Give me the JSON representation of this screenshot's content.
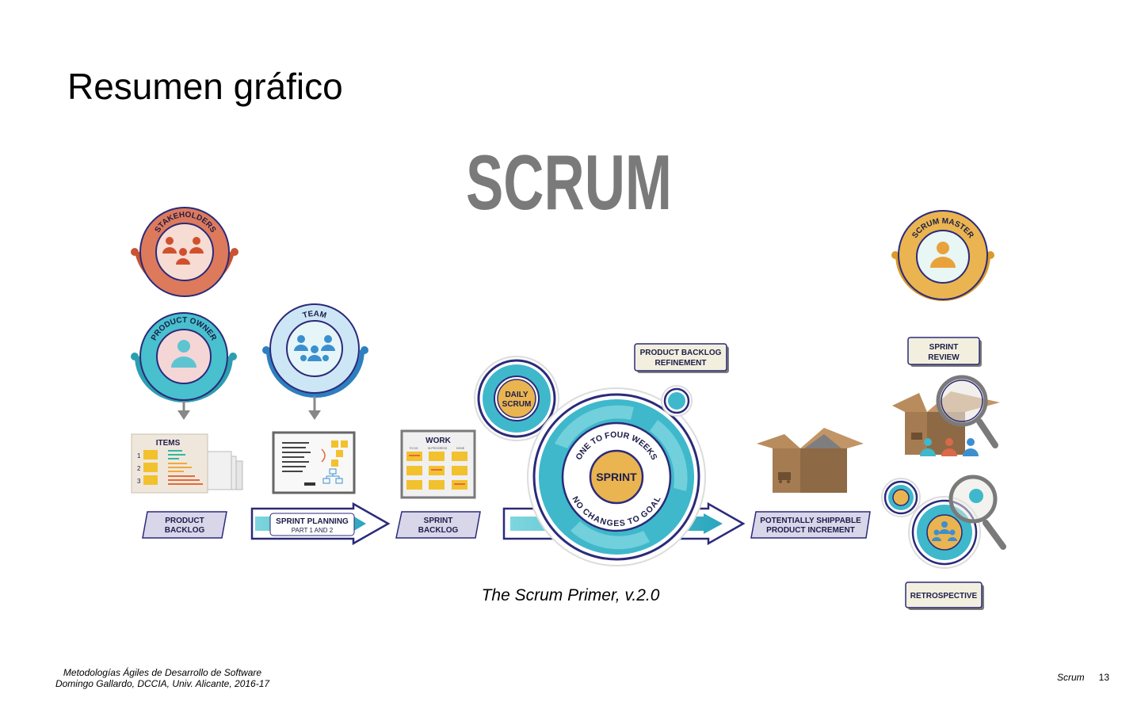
{
  "slide": {
    "title": "Resumen gráfico",
    "caption": "The Scrum Primer, v.2.0",
    "footer_line1": "Metodologías Ágiles de Desarrollo de Software",
    "footer_line2": "Domingo Gallardo, DCCIA, Univ. Alicante, 2016-17",
    "section": "Scrum",
    "page_number": "13"
  },
  "diagram": {
    "heading": "SCRUM",
    "roles": {
      "stakeholders": "STAKEHOLDERS",
      "product_owner": "PRODUCT OWNER",
      "team": "TEAM",
      "scrum_master": "SCRUM MASTER"
    },
    "artifacts": {
      "items_header": "ITEMS",
      "item_numbers": [
        "1",
        "2",
        "3"
      ],
      "work_header": "WORK",
      "work_columns": [
        "TO DO",
        "IN PROGRESS",
        "DONE"
      ]
    },
    "labels": {
      "product_backlog_1": "PRODUCT",
      "product_backlog_2": "BACKLOG",
      "sprint_planning_1": "SPRINT PLANNING",
      "sprint_planning_2": "PART 1 AND 2",
      "sprint_backlog_1": "SPRINT",
      "sprint_backlog_2": "BACKLOG",
      "daily_scrum_1": "DAILY",
      "daily_scrum_2": "SCRUM",
      "refinement_1": "PRODUCT BACKLOG",
      "refinement_2": "REFINEMENT",
      "sprint": "SPRINT",
      "sprint_ring_top": "ONE TO FOUR WEEKS",
      "sprint_ring_bottom": "NO CHANGES TO GOAL",
      "increment_1": "POTENTIALLY SHIPPABLE",
      "increment_2": "PRODUCT INCREMENT",
      "sprint_review_1": "SPRINT",
      "sprint_review_2": "REVIEW",
      "retrospective": "RETROSPECTIVE"
    },
    "colors": {
      "stakeholders": "#d9694a",
      "product_owner": "#3bb3c3",
      "team": "#3b8fcf",
      "scrum_master": "#e4a53a",
      "navy": "#2b2a7a",
      "teal": "#35b7c9",
      "box": "#a0784f",
      "label_bg": "#d9d6ea",
      "gray_heading": "#7a7a7a"
    }
  }
}
